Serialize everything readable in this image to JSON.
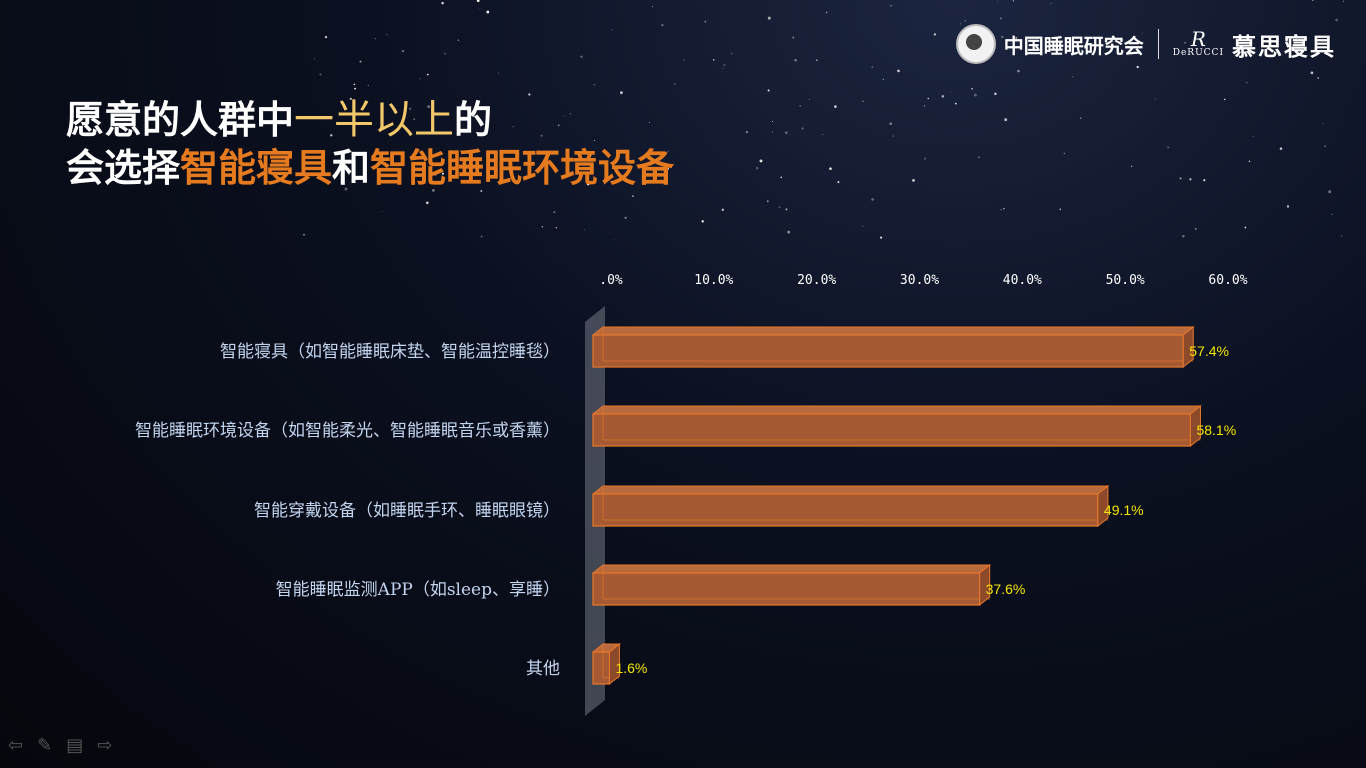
{
  "header": {
    "org_name": "中国睡眠研究会",
    "brand_script": "R",
    "brand_en": "DeRUCCI",
    "brand_cn": "慕思寝具"
  },
  "title": {
    "line1_part1": "愿意的人群中",
    "line1_highlight": "一半以上",
    "line1_part2": "的",
    "line2_part1": "会选择",
    "line2_highlight1": "智能寝具",
    "line2_part2": "和",
    "line2_highlight2": "智能睡眠环境设备"
  },
  "colors": {
    "bar": "#a55a33",
    "bar_edge": "#e8782a",
    "label": "#f5e600",
    "accent": "#e57a1e",
    "gold": "#f3c86a"
  },
  "chart_data": {
    "type": "bar",
    "orientation": "horizontal",
    "categories": [
      "智能寝具（如智能睡眠床垫、智能温控睡毯）",
      "智能睡眠环境设备（如智能柔光、智能睡眠音乐或香薰）",
      "智能穿戴设备（如睡眠手环、睡眠眼镜）",
      "智能睡眠监测APP（如sleep、享睡）",
      "其他"
    ],
    "values": [
      57.4,
      58.1,
      49.1,
      37.6,
      1.6
    ],
    "value_labels": [
      "57.4%",
      "58.1%",
      "49.1%",
      "37.6%",
      "1.6%"
    ],
    "xlim": [
      0,
      60
    ],
    "ticks": [
      0,
      10,
      20,
      30,
      40,
      50,
      60
    ],
    "tick_labels": [
      ".0%",
      "10.0%",
      "20.0%",
      "30.0%",
      "40.0%",
      "50.0%",
      "60.0%"
    ],
    "axis_position": "top",
    "grid": false
  },
  "nav": {
    "prev_icon": "arrow-left-icon",
    "pen_icon": "pen-icon",
    "menu_icon": "menu-icon",
    "next_icon": "arrow-right-icon"
  }
}
